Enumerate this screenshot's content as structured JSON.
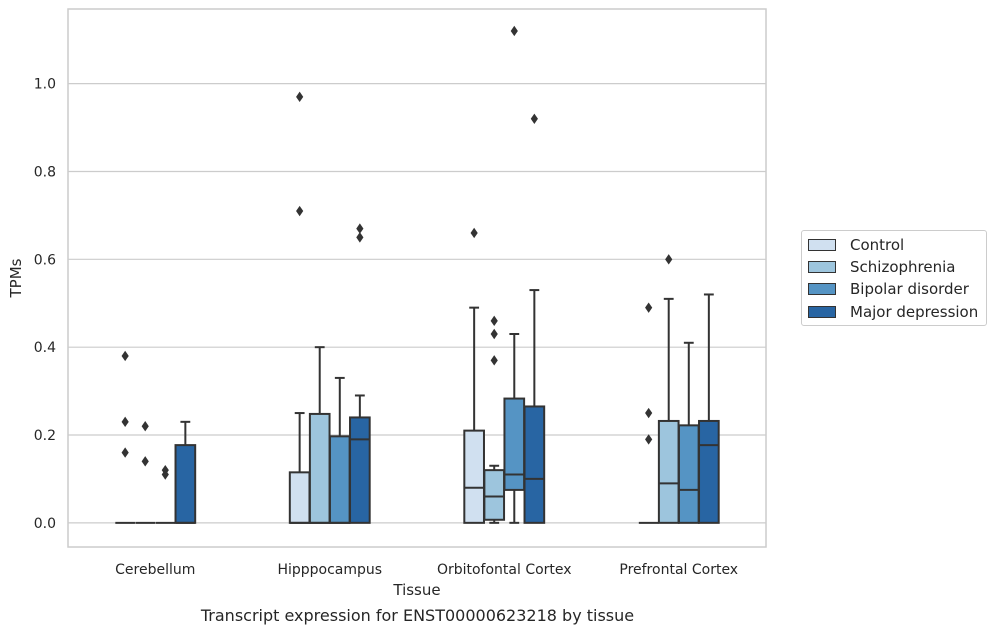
{
  "caption": "Transcript expression for ENST00000623218 by tissue",
  "chart_data": {
    "type": "box",
    "title": "",
    "xlabel": "Tissue",
    "ylabel": "TPMs",
    "ylim": [
      -0.055,
      1.17
    ],
    "yticks": [
      0.0,
      0.2,
      0.4,
      0.6,
      0.8,
      1.0
    ],
    "ytick_labels": [
      "0.0",
      "0.2",
      "0.4",
      "0.6",
      "0.8",
      "1.0"
    ],
    "grid": "horizontal",
    "legend_position": "outside-right",
    "categories": [
      "Cerebellum",
      "Hipppocampus",
      "Orbitofontal Cortex",
      "Prefrontal Cortex"
    ],
    "series": [
      {
        "name": "Control",
        "color": "#d0e0f0",
        "boxes": [
          {
            "q1": 0,
            "median": 0,
            "q3": 0,
            "whisker_low": 0,
            "whisker_high": 0,
            "outliers": [
              0.38,
              0.23,
              0.16
            ]
          },
          {
            "q1": 0,
            "median": 0,
            "q3": 0.115,
            "whisker_low": 0,
            "whisker_high": 0.25,
            "outliers": [
              0.97,
              0.71
            ]
          },
          {
            "q1": 0,
            "median": 0.08,
            "q3": 0.21,
            "whisker_low": 0,
            "whisker_high": 0.49,
            "outliers": [
              0.66
            ]
          },
          {
            "q1": 0,
            "median": 0,
            "q3": 0,
            "whisker_low": 0,
            "whisker_high": 0,
            "outliers": [
              0.49,
              0.25,
              0.19
            ]
          }
        ]
      },
      {
        "name": "Schizophrenia",
        "color": "#9dc5dd",
        "boxes": [
          {
            "q1": 0,
            "median": 0,
            "q3": 0,
            "whisker_low": 0,
            "whisker_high": 0,
            "outliers": [
              0.22,
              0.14
            ]
          },
          {
            "q1": 0,
            "median": 0,
            "q3": 0.248,
            "whisker_low": 0,
            "whisker_high": 0.4,
            "outliers": []
          },
          {
            "q1": 0.007,
            "median": 0.06,
            "q3": 0.12,
            "whisker_low": 0,
            "whisker_high": 0.13,
            "outliers": [
              0.46,
              0.43,
              0.37
            ]
          },
          {
            "q1": 0,
            "median": 0.09,
            "q3": 0.232,
            "whisker_low": 0,
            "whisker_high": 0.51,
            "outliers": [
              0.6
            ]
          }
        ]
      },
      {
        "name": "Bipolar disorder",
        "color": "#5594c4",
        "boxes": [
          {
            "q1": 0,
            "median": 0,
            "q3": 0,
            "whisker_low": 0,
            "whisker_high": 0,
            "outliers": [
              0.12,
              0.11
            ]
          },
          {
            "q1": 0,
            "median": 0,
            "q3": 0.197,
            "whisker_low": 0,
            "whisker_high": 0.33,
            "outliers": []
          },
          {
            "q1": 0.075,
            "median": 0.11,
            "q3": 0.283,
            "whisker_low": 0,
            "whisker_high": 0.43,
            "outliers": [
              1.12
            ]
          },
          {
            "q1": 0,
            "median": 0.075,
            "q3": 0.222,
            "whisker_low": 0,
            "whisker_high": 0.41,
            "outliers": []
          }
        ]
      },
      {
        "name": "Major depression",
        "color": "#2865a3",
        "boxes": [
          {
            "q1": 0,
            "median": 0,
            "q3": 0.177,
            "whisker_low": 0,
            "whisker_high": 0.23,
            "outliers": []
          },
          {
            "q1": 0,
            "median": 0.19,
            "q3": 0.24,
            "whisker_low": 0,
            "whisker_high": 0.29,
            "outliers": [
              0.67,
              0.65
            ]
          },
          {
            "q1": 0,
            "median": 0.1,
            "q3": 0.265,
            "whisker_low": 0,
            "whisker_high": 0.53,
            "outliers": [
              0.92
            ]
          },
          {
            "q1": 0,
            "median": 0.177,
            "q3": 0.232,
            "whisker_low": 0,
            "whisker_high": 0.52,
            "outliers": []
          }
        ]
      }
    ]
  }
}
